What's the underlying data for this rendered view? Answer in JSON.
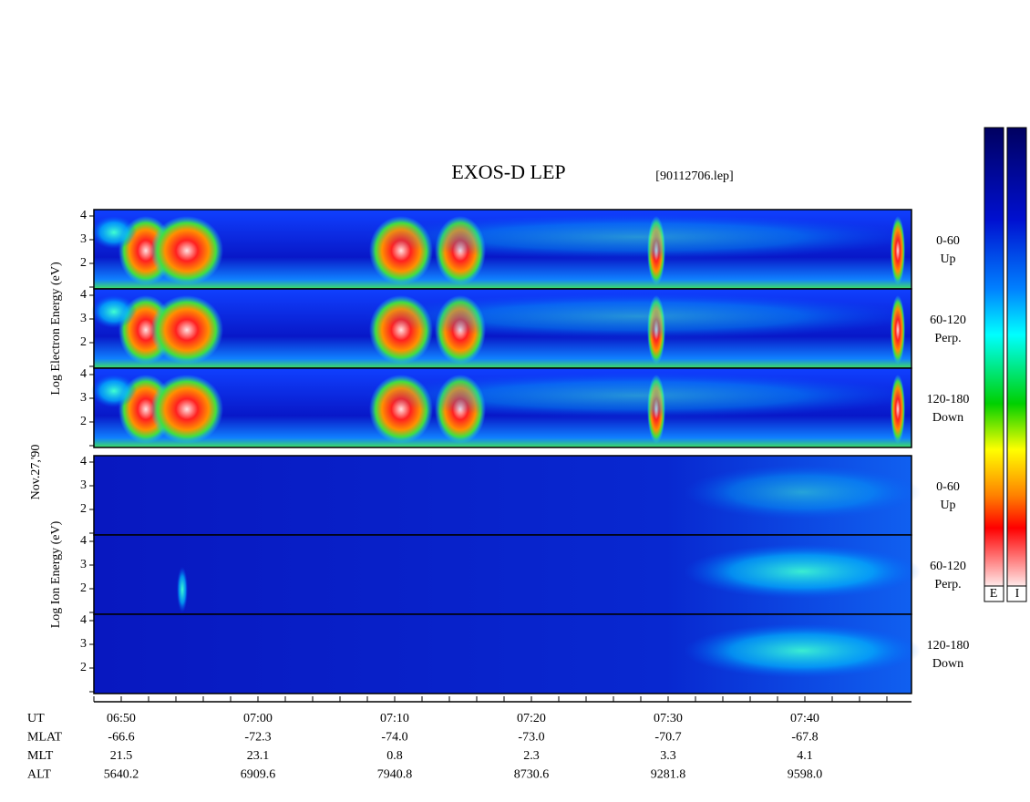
{
  "title": "EXOS-D LEP",
  "file": "[90112706.lep]",
  "date": "Nov.27,'90",
  "yticks": [
    2,
    3,
    4
  ],
  "groups": [
    {
      "ylabel": "Log Electron Energy (eV)",
      "panels": [
        {
          "label": [
            "0-60",
            "Up"
          ]
        },
        {
          "label": [
            "60-120",
            "Perp."
          ]
        },
        {
          "label": [
            "120-180",
            "Down"
          ]
        }
      ]
    },
    {
      "ylabel": "Log Ion Energy (eV)",
      "panels": [
        {
          "label": [
            "0-60",
            "Up"
          ]
        },
        {
          "label": [
            "60-120",
            "Perp."
          ]
        },
        {
          "label": [
            "120-180",
            "Down"
          ]
        }
      ]
    }
  ],
  "xaxis": {
    "rows": [
      {
        "name": "UT",
        "values": [
          "06:50",
          "07:00",
          "07:10",
          "07:20",
          "07:30",
          "07:40"
        ]
      },
      {
        "name": "MLAT",
        "values": [
          "-66.6",
          "-72.3",
          "-74.0",
          "-73.0",
          "-70.7",
          "-67.8"
        ]
      },
      {
        "name": "MLT",
        "values": [
          "21.5",
          "23.1",
          "0.8",
          "2.3",
          "3.3",
          "4.1"
        ]
      },
      {
        "name": "ALT",
        "values": [
          "5640.2",
          "6909.6",
          "7940.8",
          "8730.6",
          "9281.8",
          "9598.0"
        ]
      }
    ]
  },
  "colorbar": [
    "E",
    "I"
  ]
}
